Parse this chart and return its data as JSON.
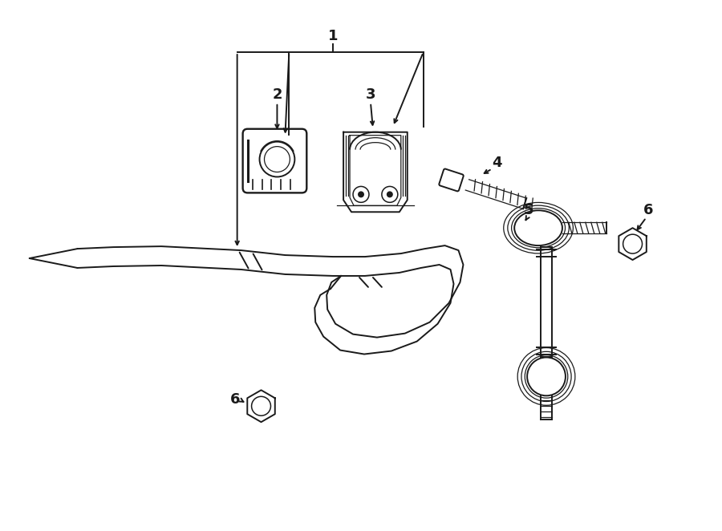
{
  "bg_color": "#ffffff",
  "line_color": "#1a1a1a",
  "lw": 1.4,
  "lw_thin": 0.9,
  "figsize": [
    9.0,
    6.62
  ],
  "dpi": 100,
  "label_fontsize": 13
}
